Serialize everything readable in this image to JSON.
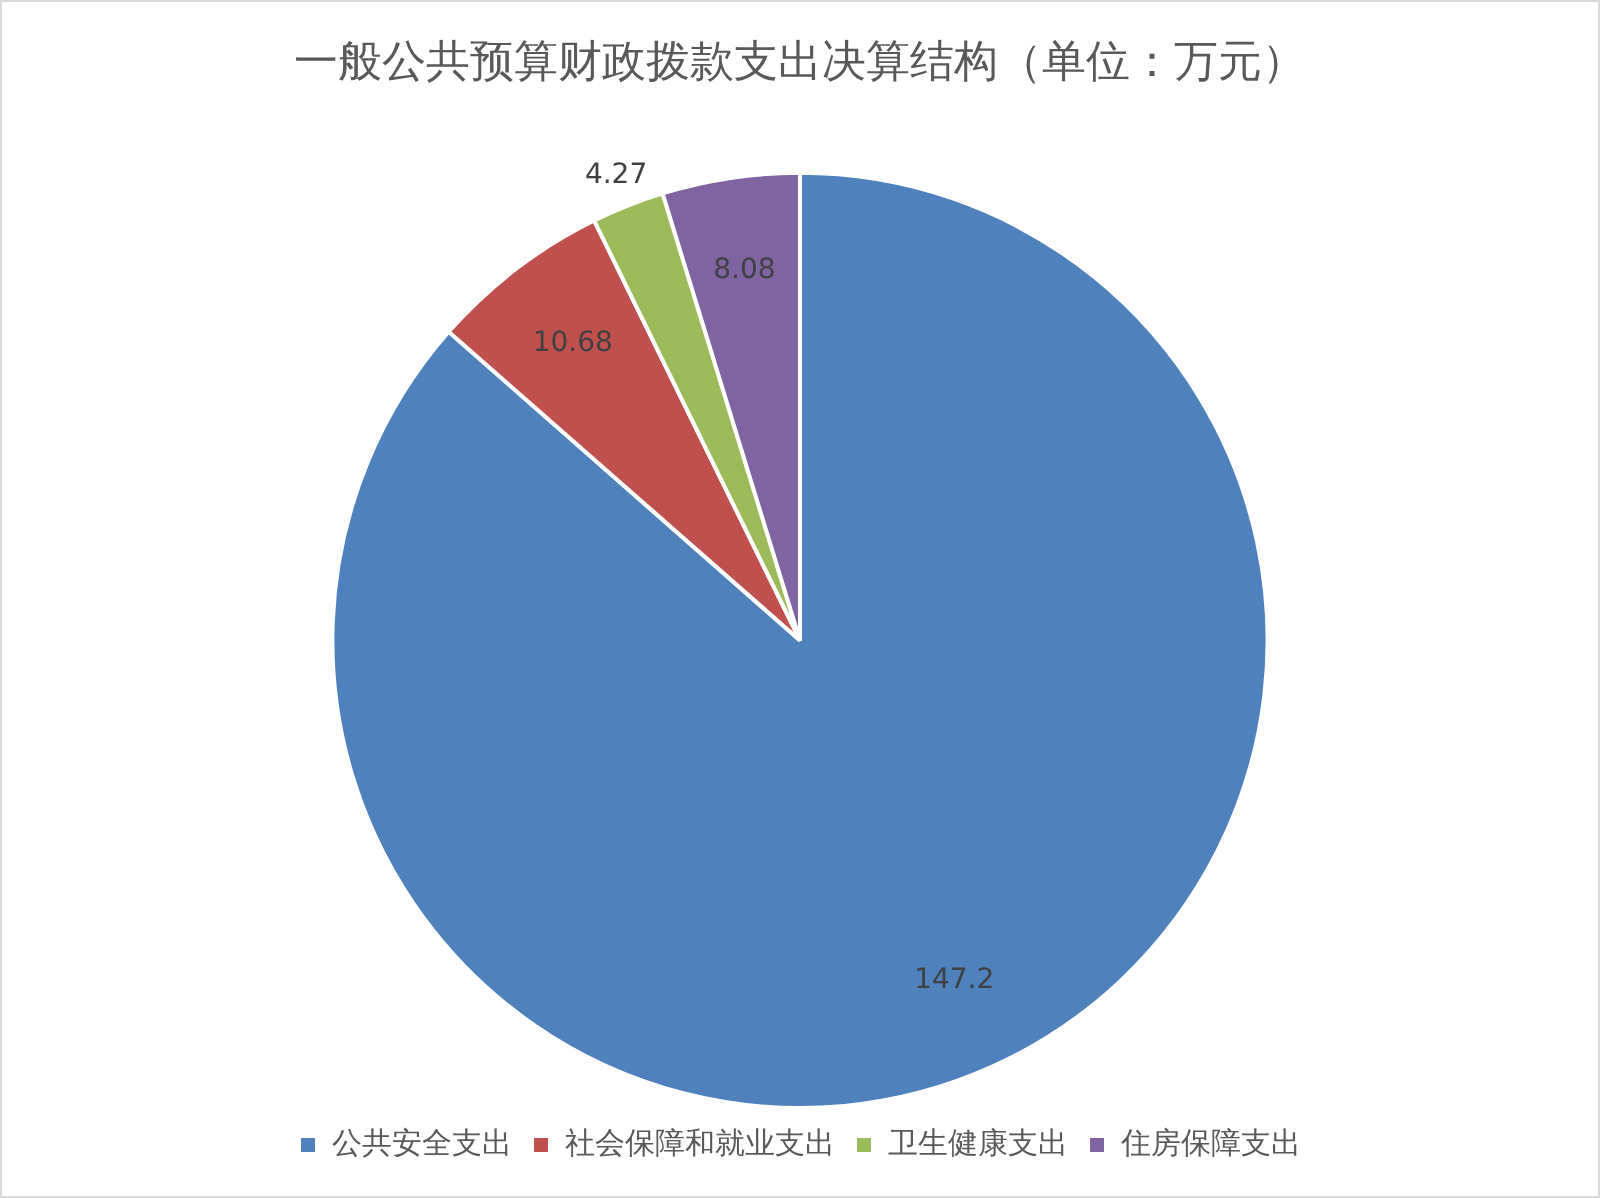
{
  "chart_data": {
    "type": "pie",
    "title": "一般公共预算财政拨款支出决算结构（单位：万元）",
    "categories": [
      "公共安全支出",
      "社会保障和就业支出",
      "卫生健康支出",
      "住房保障支出"
    ],
    "values": [
      147.2,
      10.68,
      4.27,
      8.08
    ],
    "colors": [
      "#4f81bd",
      "#c0504d",
      "#9bbb59",
      "#8064a2"
    ],
    "data_labels": true,
    "legend": "bottom"
  }
}
